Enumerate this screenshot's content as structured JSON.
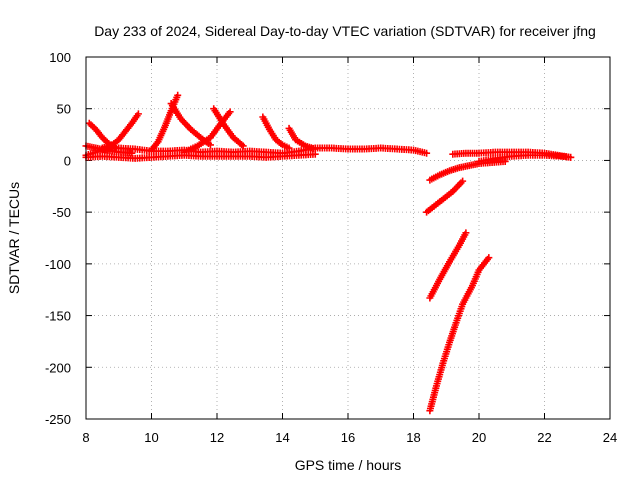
{
  "chart_data": {
    "type": "scatter",
    "title": "Day 233 of 2024, Sidereal Day-to-day VTEC variation (SDTVAR) for receiver jfng",
    "xlabel": "GPS time / hours",
    "ylabel": "SDTVAR / TECUs",
    "xlim": [
      8,
      24
    ],
    "ylim": [
      -250,
      100
    ],
    "xticks": [
      8,
      10,
      12,
      14,
      16,
      18,
      20,
      22,
      24
    ],
    "yticks": [
      100,
      50,
      0,
      -50,
      -100,
      -150,
      -200,
      -250
    ],
    "grid": true,
    "marker": "plus",
    "series_color": "#ff0000",
    "series": [
      {
        "x": [
          8.1,
          8.3,
          8.5,
          8.7,
          8.9
        ],
        "y": [
          36,
          30,
          22,
          16,
          13
        ]
      },
      {
        "x": [
          8.5,
          8.8,
          9.0,
          9.2,
          9.4,
          9.6
        ],
        "y": [
          12,
          15,
          20,
          28,
          36,
          45
        ]
      },
      {
        "x": [
          10.0,
          10.2,
          10.4,
          10.6,
          10.8
        ],
        "y": [
          10,
          18,
          32,
          48,
          63
        ]
      },
      {
        "x": [
          10.6,
          10.9,
          11.2,
          11.5,
          11.8
        ],
        "y": [
          55,
          40,
          30,
          22,
          15
        ]
      },
      {
        "x": [
          11.0,
          11.4,
          11.8,
          12.1,
          12.4
        ],
        "y": [
          8,
          14,
          22,
          35,
          47
        ]
      },
      {
        "x": [
          11.9,
          12.2,
          12.5,
          12.8
        ],
        "y": [
          50,
          35,
          22,
          14
        ]
      },
      {
        "x": [
          13.4,
          13.6,
          13.8,
          14.0,
          14.2
        ],
        "y": [
          42,
          30,
          20,
          15,
          12
        ]
      },
      {
        "x": [
          14.2,
          14.4,
          14.7,
          15.0
        ],
        "y": [
          31,
          20,
          14,
          11
        ]
      },
      {
        "x": [
          8.0,
          8.5,
          9.0,
          9.5,
          10.0,
          10.5,
          11.0,
          11.5,
          12.0,
          12.5,
          13.0,
          13.5,
          14.0,
          14.5,
          15.0,
          15.5,
          16.0,
          16.5,
          17.0,
          17.5,
          18.0,
          18.4
        ],
        "y": [
          5,
          10,
          12,
          11,
          9,
          9,
          10,
          8,
          9,
          8,
          9,
          8,
          7,
          9,
          12,
          12,
          11,
          11,
          12,
          11,
          10,
          7
        ]
      },
      {
        "x": [
          8.0,
          8.5,
          9.0,
          9.5,
          10.0,
          10.5,
          11.0,
          11.5,
          12.0,
          12.5,
          13.0,
          13.5,
          14.0,
          14.5,
          15.0
        ],
        "y": [
          3,
          4,
          3,
          2,
          3,
          4,
          5,
          4,
          4,
          4,
          4,
          3,
          4,
          5,
          6
        ]
      },
      {
        "x": [
          8.0,
          8.3,
          8.6,
          9.0,
          9.4
        ],
        "y": [
          14,
          12,
          10,
          8,
          7
        ]
      },
      {
        "x": [
          18.5,
          18.8,
          19.1,
          19.4,
          19.7,
          20.0,
          20.4,
          20.8
        ],
        "y": [
          -19,
          -14,
          -10,
          -7,
          -5,
          -3,
          -2,
          -1
        ]
      },
      {
        "x": [
          18.4,
          18.8,
          19.2,
          19.5
        ],
        "y": [
          -50,
          -40,
          -30,
          -20
        ]
      },
      {
        "x": [
          18.5,
          18.8,
          19.1,
          19.4,
          19.6
        ],
        "y": [
          -133,
          -115,
          -98,
          -82,
          -70
        ]
      },
      {
        "x": [
          18.5,
          18.7,
          18.9,
          19.1,
          19.3,
          19.5,
          19.8,
          20.0,
          20.3
        ],
        "y": [
          -242,
          -218,
          -196,
          -176,
          -157,
          -139,
          -121,
          -106,
          -94
        ]
      },
      {
        "x": [
          19.2,
          19.6,
          20.0,
          20.5,
          21.0,
          21.5,
          22.0,
          22.4,
          22.8
        ],
        "y": [
          6,
          7,
          7,
          8,
          8,
          8,
          7,
          5,
          3
        ]
      },
      {
        "x": [
          20.0,
          20.5,
          21.0,
          21.5,
          22.0,
          22.5,
          22.8
        ],
        "y": [
          -1,
          2,
          4,
          5,
          5,
          4,
          3
        ]
      }
    ]
  }
}
